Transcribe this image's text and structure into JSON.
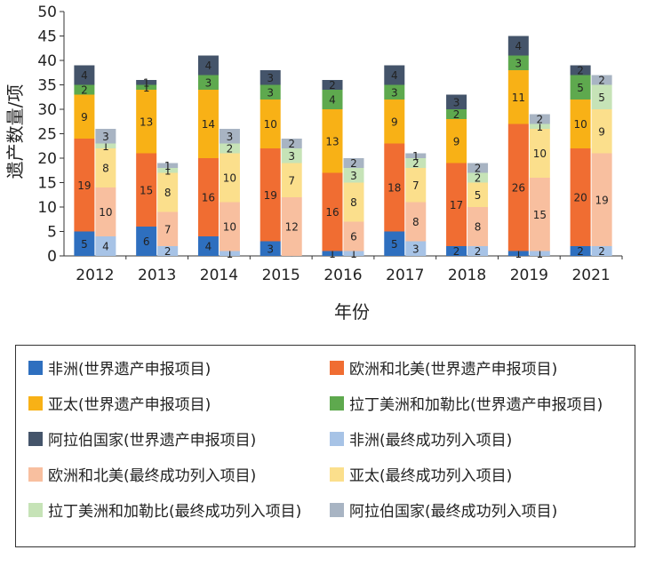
{
  "chart_data": {
    "type": "bar",
    "variant": "grouped-stacked",
    "ylabel": "遗产数量/项",
    "xlabel": "年份",
    "ylim": [
      0,
      50
    ],
    "yticks": [
      0,
      5,
      10,
      15,
      20,
      25,
      30,
      35,
      40,
      45,
      50
    ],
    "categories": [
      "2012",
      "2013",
      "2014",
      "2015",
      "2016",
      "2017",
      "2018",
      "2019",
      "2021"
    ],
    "groups": [
      {
        "name": "世界遗产申报项目",
        "series": [
          {
            "name": "非洲(世界遗产申报项目)",
            "color": "#2e6fbf",
            "values": [
              5,
              6,
              4,
              3,
              1,
              5,
              2,
              1,
              2
            ]
          },
          {
            "name": "欧洲和北美(世界遗产申报项目)",
            "color": "#f06d32",
            "values": [
              19,
              15,
              16,
              19,
              16,
              18,
              17,
              26,
              20
            ]
          },
          {
            "name": "亚太(世界遗产申报项目)",
            "color": "#f8b116",
            "values": [
              9,
              13,
              14,
              10,
              13,
              9,
              9,
              11,
              10
            ]
          },
          {
            "name": "拉丁美洲和加勒比(世界遗产申报项目)",
            "color": "#5ea94e",
            "values": [
              2,
              1,
              3,
              3,
              4,
              3,
              2,
              3,
              5
            ]
          },
          {
            "name": "阿拉伯国家(世界遗产申报项目)",
            "color": "#44546a",
            "values": [
              4,
              1,
              4,
              3,
              2,
              4,
              3,
              4,
              2
            ]
          }
        ]
      },
      {
        "name": "最终成功列入项目",
        "series": [
          {
            "name": "非洲(最终成功列入项目)",
            "color": "#a7c3e6",
            "values": [
              4,
              2,
              1,
              0,
              1,
              3,
              2,
              1,
              2
            ]
          },
          {
            "name": "欧洲和北美(最终成功列入项目)",
            "color": "#f8bf9f",
            "values": [
              10,
              7,
              10,
              12,
              6,
              8,
              8,
              15,
              19
            ]
          },
          {
            "name": "亚太(最终成功列入项目)",
            "color": "#fbdf8c",
            "values": [
              8,
              8,
              10,
              7,
              8,
              7,
              5,
              10,
              9
            ]
          },
          {
            "name": "拉丁美洲和加勒比(最终成功列入项目)",
            "color": "#c6e3b7",
            "values": [
              1,
              1,
              2,
              3,
              3,
              2,
              2,
              1,
              5
            ]
          },
          {
            "name": "阿拉伯国家(最终成功列入项目)",
            "color": "#a8b4c3",
            "values": [
              3,
              1,
              3,
              2,
              2,
              1,
              2,
              2,
              2
            ]
          }
        ]
      }
    ],
    "legend_position": "bottom"
  },
  "legend": {
    "items": [
      "非洲(世界遗产申报项目)",
      "欧洲和北美(世界遗产申报项目)",
      "亚太(世界遗产申报项目)",
      "拉丁美洲和加勒比(世界遗产申报项目)",
      "阿拉伯国家(世界遗产申报项目)",
      "非洲(最终成功列入项目)",
      "欧洲和北美(最终成功列入项目)",
      "亚太(最终成功列入项目)",
      "拉丁美洲和加勒比(最终成功列入项目)",
      "阿拉伯国家(最终成功列入项目)"
    ]
  }
}
